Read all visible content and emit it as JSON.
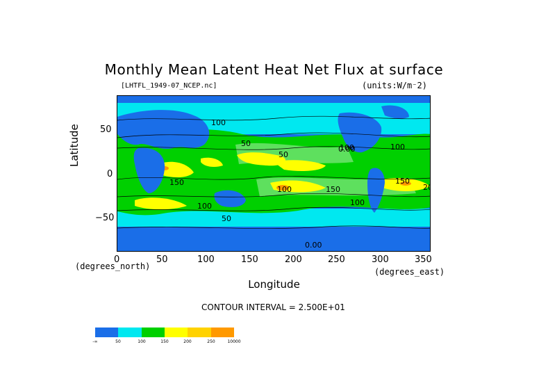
{
  "title": "Monthly Mean Latent Heat Net Flux at surface",
  "file_label": "[LHTFL_1949-07_NCEP.nc]",
  "units_label": "(units:W/m⁻2)",
  "y_axis": {
    "label": "Latitude",
    "ticks": [
      "50",
      "0",
      "−50"
    ],
    "unit_note": "(degrees_north)"
  },
  "x_axis": {
    "label": "Longitude",
    "ticks": [
      "0",
      "50",
      "100",
      "150",
      "200",
      "250",
      "300",
      "350"
    ],
    "unit_note": "(degrees_east)"
  },
  "contour_interval": "CONTOUR INTERVAL = 2.500E+01",
  "contour_labels": [
    "100",
    "50",
    "100",
    "150",
    "100",
    "50",
    "100",
    "150",
    "150",
    "200",
    "100",
    "100",
    "50",
    "0.00",
    "0.00"
  ],
  "legend": {
    "labels": [
      "-∞",
      "50",
      "100",
      "150",
      "200",
      "250",
      "10000"
    ],
    "colors": [
      "#1a6ee8",
      "#00e8f0",
      "#00d000",
      "#ffff00",
      "#ffd200",
      "#ff9900",
      "#ff2020"
    ]
  },
  "colors": {
    "deep_blue": "#1a6ee8",
    "cyan": "#00e8f0",
    "green": "#00d000",
    "light_green": "#5ee05e",
    "yellow": "#ffff00",
    "orange": "#ff9900",
    "red": "#ff2020"
  }
}
